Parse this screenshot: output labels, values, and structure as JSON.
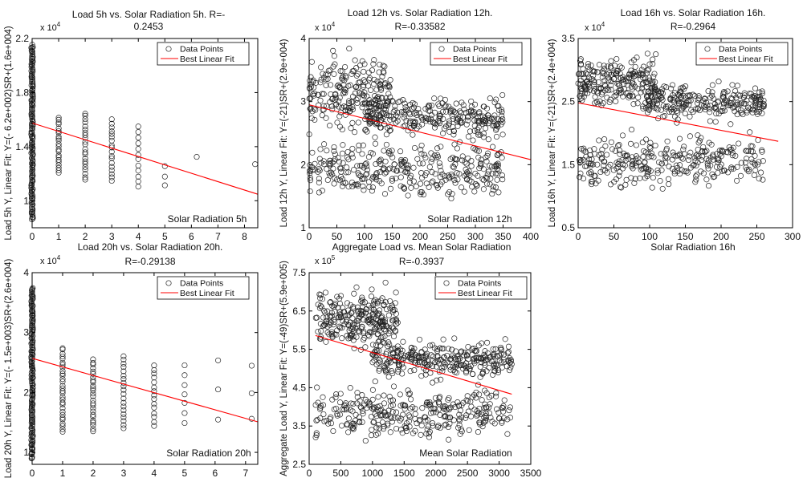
{
  "chart_data": [
    {
      "type": "scatter",
      "title": [
        "Load 5h vs. Solar Radiation 5h. R=-",
        "0.2453"
      ],
      "xlabel": "",
      "xlabel_inside": "Solar Radiation 5h",
      "ylabel": "Load 5h Y, Linear Fit: Y=(- 6.2e+002)SR+(1.6e+004)",
      "y_multiplier": "x 10",
      "y_exponent": "4",
      "xlim": [
        0,
        8.5
      ],
      "ylim": [
        0.8,
        2.2
      ],
      "xticks": [
        0,
        1,
        2,
        3,
        4,
        5,
        6,
        7,
        8
      ],
      "xtick_labels": [
        "0",
        "1",
        "2",
        "3",
        "4",
        "5",
        "6",
        "7",
        "8"
      ],
      "yticks": [
        1,
        1.4,
        1.8,
        2.2
      ],
      "ytick_labels": [
        "1",
        "1.4",
        "1.8",
        "2.2"
      ],
      "fit": {
        "x": [
          0,
          8.5
        ],
        "y": [
          1.575,
          1.048
        ]
      },
      "legend": [
        "Data Points",
        "Best Linear Fit"
      ],
      "points_summary": {
        "columns": [
          {
            "x": 0,
            "ymin": 0.86,
            "ymax": 2.15,
            "n": 160
          },
          {
            "x": 1,
            "ymin": 1.2,
            "ymax": 1.62,
            "n": 22
          },
          {
            "x": 2,
            "ymin": 1.15,
            "ymax": 1.65,
            "n": 22
          },
          {
            "x": 3,
            "ymin": 1.15,
            "ymax": 1.6,
            "n": 18
          },
          {
            "x": 4,
            "ymin": 1.1,
            "ymax": 1.55,
            "n": 12
          },
          {
            "x": 5,
            "ymin": 1.12,
            "ymax": 1.25,
            "n": 3
          },
          {
            "x": 6.2,
            "ymin": 1.33,
            "ymax": 1.33,
            "n": 1
          },
          {
            "x": 8.4,
            "ymin": 1.27,
            "ymax": 1.27,
            "n": 1
          }
        ]
      }
    },
    {
      "type": "scatter",
      "title": [
        "Load 12h vs. Solar Radiation 12h.",
        "R=-0.33582"
      ],
      "xlabel": "",
      "xlabel_inside": "Solar Radiation 12h",
      "ylabel": "Load 12h Y, Linear Fit: Y=(-21)SR+(2.9e+004)",
      "y_multiplier": "x 10",
      "y_exponent": "4",
      "xlim": [
        0,
        400
      ],
      "ylim": [
        1,
        4
      ],
      "xticks": [
        0,
        50,
        100,
        150,
        200,
        250,
        300,
        350,
        400
      ],
      "xtick_labels": [
        "0",
        "50",
        "100",
        "150",
        "200",
        "250",
        "300",
        "350",
        "400"
      ],
      "yticks": [
        1,
        2,
        3,
        4
      ],
      "ytick_labels": [
        "1",
        "2",
        "3",
        "4"
      ],
      "fit": {
        "x": [
          0,
          400
        ],
        "y": [
          2.95,
          2.08
        ]
      },
      "legend": [
        "Data Points",
        "Best Linear Fit"
      ],
      "points_summary": {
        "clusters": [
          {
            "xmin": 0,
            "xmax": 150,
            "ymin": 2.4,
            "ymax": 3.9,
            "n": 220
          },
          {
            "xmin": 100,
            "xmax": 350,
            "ymin": 2.3,
            "ymax": 3.2,
            "n": 280
          },
          {
            "xmin": 0,
            "xmax": 350,
            "ymin": 1.3,
            "ymax": 2.5,
            "n": 330
          }
        ]
      }
    },
    {
      "type": "scatter",
      "title": [
        "Load 16h vs. Solar Radiation 16h.",
        "R=-0.2964"
      ],
      "xlabel": "Solar Radiation 16h",
      "ylabel": "Load 16h Y, Linear Fit: Y=(-21)SR+(2.4e+004)",
      "y_multiplier": "x 10",
      "y_exponent": "4",
      "xlim": [
        0,
        300
      ],
      "ylim": [
        0.5,
        3.5
      ],
      "xticks": [
        0,
        50,
        100,
        150,
        200,
        250,
        300
      ],
      "xtick_labels": [
        "0",
        "50",
        "100",
        "150",
        "200",
        "250",
        "300"
      ],
      "yticks": [
        0.5,
        1.5,
        2.5,
        3.5
      ],
      "ytick_labels": [
        "0.5",
        "1.5",
        "2.5",
        "3.5"
      ],
      "fit": {
        "x": [
          0,
          280
        ],
        "y": [
          2.48,
          1.87
        ]
      },
      "legend": [
        "Data Points",
        "Best Linear Fit"
      ],
      "points_summary": {
        "clusters": [
          {
            "xmin": 0,
            "xmax": 110,
            "ymin": 2.3,
            "ymax": 3.35,
            "n": 220
          },
          {
            "xmin": 90,
            "xmax": 260,
            "ymin": 2.1,
            "ymax": 2.9,
            "n": 250
          },
          {
            "xmin": 0,
            "xmax": 260,
            "ymin": 1.0,
            "ymax": 2.1,
            "n": 300
          }
        ]
      }
    },
    {
      "type": "scatter",
      "title": [
        "Load 20h vs. Solar Radiation 20h.",
        "R=-0.29138"
      ],
      "xlabel": "",
      "xlabel_inside": "Solar Radiation 20h",
      "ylabel": "Load 20h Y, Linear Fit: Y=(- 1.5e+003)SR+(2.6e+004)",
      "y_multiplier": "x 10",
      "y_exponent": "4",
      "xlim": [
        0,
        7.4
      ],
      "ylim": [
        0.8,
        4
      ],
      "xticks": [
        0,
        1,
        2,
        3,
        4,
        5,
        6,
        7
      ],
      "xtick_labels": [
        "0",
        "1",
        "2",
        "3",
        "4",
        "5",
        "6",
        "7"
      ],
      "yticks": [
        1,
        2,
        3,
        4
      ],
      "ytick_labels": [
        "1",
        "2",
        "3",
        "4"
      ],
      "fit": {
        "x": [
          0,
          7.4
        ],
        "y": [
          2.57,
          1.51
        ]
      },
      "legend": [
        "Data Points",
        "Best Linear Fit"
      ],
      "points_summary": {
        "columns": [
          {
            "x": 0,
            "ymin": 0.9,
            "ymax": 3.75,
            "n": 170
          },
          {
            "x": 1,
            "ymin": 1.35,
            "ymax": 2.75,
            "n": 30
          },
          {
            "x": 2,
            "ymin": 1.35,
            "ymax": 2.55,
            "n": 26
          },
          {
            "x": 3,
            "ymin": 1.4,
            "ymax": 2.6,
            "n": 20
          },
          {
            "x": 4,
            "ymin": 1.45,
            "ymax": 2.45,
            "n": 15
          },
          {
            "x": 5,
            "ymin": 1.5,
            "ymax": 2.45,
            "n": 7
          },
          {
            "x": 6.1,
            "ymin": 1.55,
            "ymax": 2.55,
            "n": 3
          },
          {
            "x": 7.2,
            "ymin": 1.55,
            "ymax": 2.45,
            "n": 3
          }
        ]
      }
    },
    {
      "type": "scatter",
      "title": [
        "Aggregate Load vs. Mean Solar Radiation",
        "R=-0.3937"
      ],
      "xlabel": "",
      "xlabel_inside": "Mean Solar Radiation",
      "ylabel": "Aggregate Load Y, Linear Fit: Y=(-49)SR+(5.9e+005)",
      "y_multiplier": "x 10",
      "y_exponent": "5",
      "xlim": [
        0,
        3500
      ],
      "ylim": [
        2.5,
        7.5
      ],
      "xticks": [
        0,
        500,
        1000,
        1500,
        2000,
        2500,
        3000,
        3500
      ],
      "xtick_labels": [
        "0",
        "500",
        "1000",
        "1500",
        "2000",
        "2500",
        "3000",
        "3500"
      ],
      "yticks": [
        2.5,
        3.5,
        4.5,
        5.5,
        6.5,
        7.5
      ],
      "ytick_labels": [
        "2.5",
        "3.5",
        "4.5",
        "5.5",
        "6.5",
        "7.5"
      ],
      "fit": {
        "x": [
          100,
          3200
        ],
        "y": [
          5.86,
          4.33
        ]
      },
      "legend": [
        "Data Points",
        "Best Linear Fit"
      ],
      "points_summary": {
        "clusters": [
          {
            "xmin": 100,
            "xmax": 1400,
            "ymin": 5.2,
            "ymax": 7.3,
            "n": 260
          },
          {
            "xmin": 1000,
            "xmax": 3200,
            "ymin": 4.6,
            "ymax": 5.9,
            "n": 300
          },
          {
            "xmin": 100,
            "xmax": 3200,
            "ymin": 2.9,
            "ymax": 4.8,
            "n": 320
          }
        ]
      }
    }
  ]
}
